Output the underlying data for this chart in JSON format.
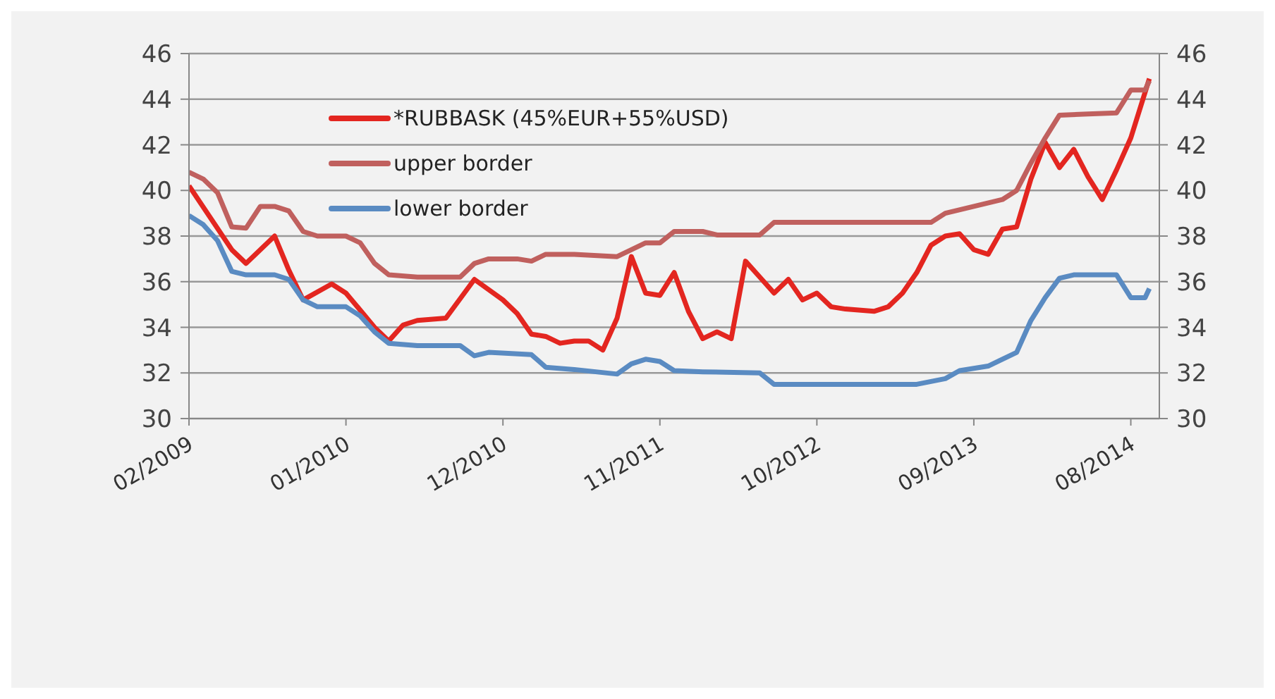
{
  "chart_data": {
    "type": "line",
    "xlim": [
      "2009-02",
      "2014-10"
    ],
    "xticks": [
      {
        "value": "2009-02",
        "label": "02/2009"
      },
      {
        "value": "2010-01",
        "label": "01/2010"
      },
      {
        "value": "2010-12",
        "label": "12/2010"
      },
      {
        "value": "2011-11",
        "label": "11/2011"
      },
      {
        "value": "2012-10",
        "label": "10/2012"
      },
      {
        "value": "2013-09",
        "label": "09/2013"
      },
      {
        "value": "2014-08",
        "label": "08/2014"
      }
    ],
    "ylim": [
      30,
      46
    ],
    "yticks": [
      30,
      32,
      34,
      36,
      38,
      40,
      42,
      44,
      46
    ],
    "y2lim": [
      30,
      46
    ],
    "y2ticks": [
      30,
      32,
      34,
      36,
      38,
      40,
      42,
      44,
      46
    ],
    "grid": "y",
    "legend": "top left",
    "line_style": "solid",
    "series": [
      {
        "name": "*RUBBASK (45%EUR+55%USD)",
        "color": "#e32620",
        "x": [
          "2009-02",
          "2009-05",
          "2009-06",
          "2009-08",
          "2009-09",
          "2009-10",
          "2009-12",
          "2010-01",
          "2010-03",
          "2010-04",
          "2010-05",
          "2010-06",
          "2010-08",
          "2010-10",
          "2010-12",
          "2011-01",
          "2011-02",
          "2011-03",
          "2011-04",
          "2011-05",
          "2011-06",
          "2011-07",
          "2011-08",
          "2011-09",
          "2011-10",
          "2011-11",
          "2011-12",
          "2012-01",
          "2012-02",
          "2012-03",
          "2012-04",
          "2012-05",
          "2012-06",
          "2012-07",
          "2012-08",
          "2012-09",
          "2012-10",
          "2012-11",
          "2012-12",
          "2013-02",
          "2013-03",
          "2013-04",
          "2013-05",
          "2013-06",
          "2013-07",
          "2013-08",
          "2013-09",
          "2013-10",
          "2013-11",
          "2013-12",
          "2014-01",
          "2014-02",
          "2014-03",
          "2014-04",
          "2014-05",
          "2014-06",
          "2014-07",
          "2014-08",
          "2014-09-10"
        ],
        "values": [
          40.2,
          37.4,
          36.8,
          38.0,
          36.5,
          35.2,
          35.9,
          35.5,
          34.0,
          33.4,
          34.1,
          34.3,
          34.4,
          36.1,
          35.2,
          34.6,
          33.7,
          33.6,
          33.3,
          33.4,
          33.4,
          33.0,
          34.4,
          37.1,
          35.5,
          35.4,
          36.4,
          34.7,
          33.5,
          33.8,
          33.5,
          36.9,
          36.2,
          35.5,
          36.1,
          35.2,
          35.5,
          34.9,
          34.8,
          34.7,
          34.9,
          35.5,
          36.4,
          37.6,
          38.0,
          38.1,
          37.4,
          37.2,
          38.3,
          38.4,
          40.5,
          42.1,
          41.0,
          41.8,
          40.6,
          39.6,
          40.9,
          42.3,
          44.9
        ]
      },
      {
        "name": "upper border",
        "color": "#c0605e",
        "x": [
          "2009-02",
          "2009-03",
          "2009-04",
          "2009-05",
          "2009-06",
          "2009-07",
          "2009-08",
          "2009-09",
          "2009-10",
          "2009-11",
          "2010-01",
          "2010-02",
          "2010-03",
          "2010-04",
          "2010-06",
          "2010-09",
          "2010-10",
          "2010-11",
          "2011-01",
          "2011-02",
          "2011-03",
          "2011-05",
          "2011-08",
          "2011-09",
          "2011-10",
          "2011-11",
          "2011-12",
          "2012-02",
          "2012-03",
          "2012-06",
          "2012-07",
          "2013-06",
          "2013-07",
          "2013-09",
          "2013-11",
          "2013-12",
          "2014-01",
          "2014-02",
          "2014-03",
          "2014-05",
          "2014-07",
          "2014-08",
          "2014-09",
          "2014-09-10"
        ],
        "values": [
          40.8,
          40.5,
          39.9,
          38.4,
          38.35,
          39.3,
          39.3,
          39.1,
          38.2,
          38.0,
          38.0,
          37.7,
          36.8,
          36.3,
          36.2,
          36.2,
          36.8,
          37.0,
          37.0,
          36.9,
          37.2,
          37.2,
          37.1,
          37.4,
          37.7,
          37.7,
          38.2,
          38.2,
          38.05,
          38.05,
          38.6,
          38.6,
          39.0,
          39.3,
          39.6,
          40.0,
          41.2,
          42.3,
          43.3,
          43.35,
          43.4,
          44.4,
          44.4,
          44.8
        ]
      },
      {
        "name": "lower border",
        "color": "#5a8bc2",
        "x": [
          "2009-02",
          "2009-03",
          "2009-04",
          "2009-05",
          "2009-06",
          "2009-08",
          "2009-09",
          "2009-10",
          "2009-11",
          "2010-01",
          "2010-02",
          "2010-03",
          "2010-04",
          "2010-06",
          "2010-09",
          "2010-10",
          "2010-11",
          "2011-02",
          "2011-03",
          "2011-05",
          "2011-08",
          "2011-09",
          "2011-10",
          "2011-11",
          "2011-12",
          "2012-02",
          "2012-06",
          "2012-07",
          "2013-05",
          "2013-07",
          "2013-08",
          "2013-10",
          "2013-12",
          "2014-01",
          "2014-02",
          "2014-03",
          "2014-04",
          "2014-07",
          "2014-08",
          "2014-09",
          "2014-09-10"
        ],
        "values": [
          38.9,
          38.5,
          37.8,
          36.45,
          36.3,
          36.3,
          36.1,
          35.2,
          34.9,
          34.9,
          34.5,
          33.8,
          33.3,
          33.2,
          33.2,
          32.75,
          32.9,
          32.8,
          32.25,
          32.15,
          31.95,
          32.4,
          32.6,
          32.5,
          32.1,
          32.05,
          32.0,
          31.5,
          31.5,
          31.75,
          32.1,
          32.3,
          32.9,
          34.3,
          35.3,
          36.15,
          36.3,
          36.3,
          35.3,
          35.3,
          35.7
        ]
      }
    ]
  }
}
